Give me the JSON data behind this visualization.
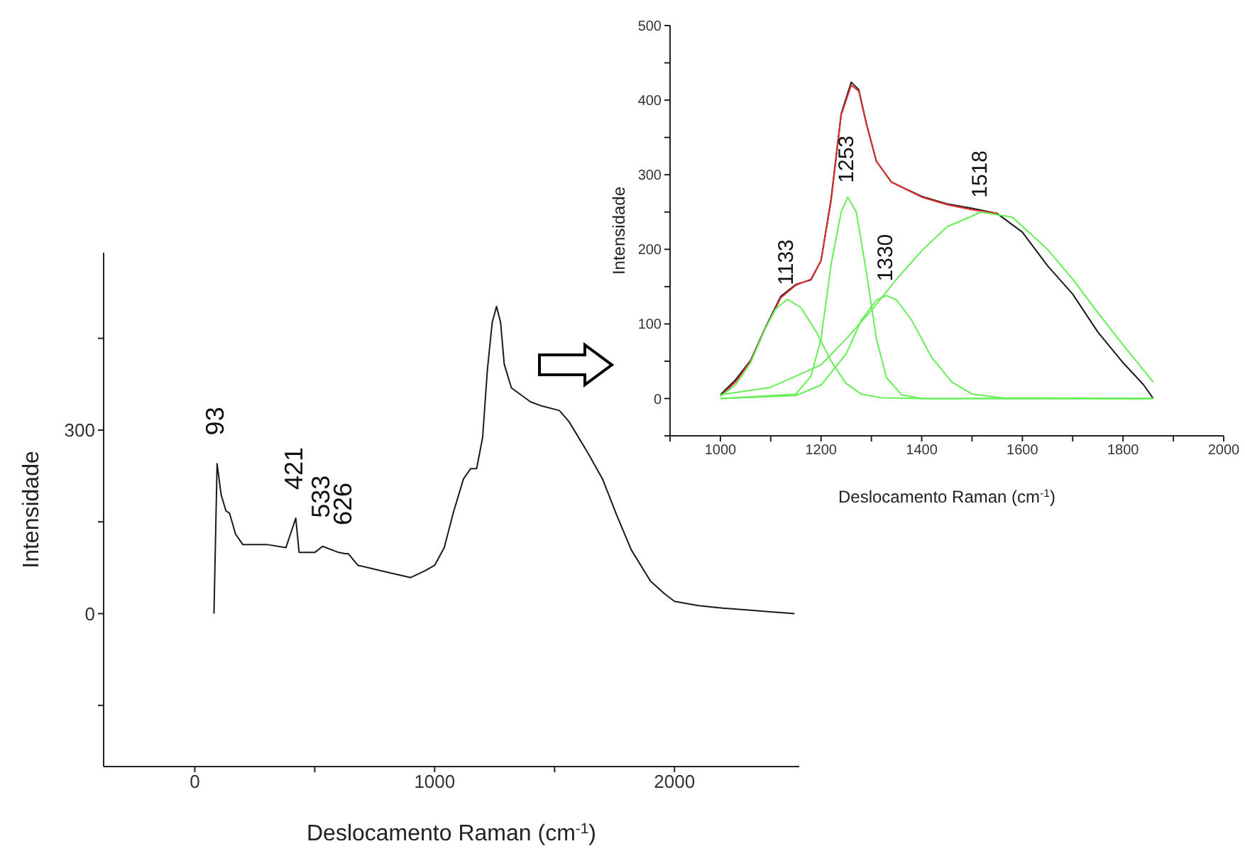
{
  "chart_data": [
    {
      "type": "line",
      "xlabel": "Deslocamento Raman (cm$^{-1}$)",
      "ylabel": "Intensidade",
      "xlim": [
        -380,
        2520
      ],
      "ylim": [
        -250,
        590
      ],
      "xticks": [
        0,
        {
          "value": 500,
          "label": null
        },
        1000,
        {
          "value": 1500,
          "label": null
        },
        2000
      ],
      "yticks": [
        {
          "value": -150,
          "label": null
        },
        0,
        {
          "value": 150,
          "label": null
        },
        300,
        {
          "value": 450,
          "label": null
        }
      ],
      "series": [
        {
          "color": "#1a1a1a",
          "x": [
            80,
            93,
            110,
            130,
            145,
            170,
            200,
            300,
            380,
            410,
            421,
            435,
            500,
            533,
            600,
            626,
            640,
            680,
            800,
            900,
            960,
            1000,
            1040,
            1080,
            1120,
            1150,
            1175,
            1200,
            1220,
            1240,
            1258,
            1275,
            1290,
            1320,
            1400,
            1450,
            1520,
            1560,
            1640,
            1700,
            1760,
            1820,
            1900,
            1960,
            2000,
            2100,
            2200,
            2300,
            2400,
            2500
          ],
          "values": [
            0,
            245,
            194,
            168,
            164,
            130,
            113,
            113,
            108,
            143,
            156,
            100,
            100,
            110,
            100,
            98,
            98,
            79,
            68,
            59,
            70,
            79,
            108,
            168,
            220,
            237,
            237,
            288,
            399,
            476,
            502,
            476,
            408,
            369,
            346,
            339,
            332,
            314,
            262,
            220,
            160,
            104,
            53,
            32,
            20,
            13,
            9,
            6,
            3,
            0
          ]
        }
      ],
      "annotations": [
        {
          "text": "93",
          "x": 93,
          "y": 245
        },
        {
          "text": "421",
          "x": 421,
          "y": 156
        },
        {
          "text": "533",
          "x": 533,
          "y": 110
        },
        {
          "text": "626",
          "x": 626,
          "y": 98
        }
      ]
    },
    {
      "type": "line",
      "xlabel": "Deslocamento Raman (cm$^{-1}$)",
      "ylabel": "Intensidade",
      "xlim": [
        900,
        2000
      ],
      "ylim": [
        -50,
        500
      ],
      "xticks": [
        {
          "value": 900,
          "label": null
        },
        1000,
        {
          "value": 1100,
          "label": null
        },
        1200,
        {
          "value": 1300,
          "label": null
        },
        1400,
        {
          "value": 1500,
          "label": null
        },
        1600,
        {
          "value": 1700,
          "label": null
        },
        1800,
        {
          "value": 1900,
          "label": null
        },
        2000
      ],
      "yticks": [
        {
          "value": -50,
          "label": null
        },
        0,
        {
          "value": 50,
          "label": null
        },
        100,
        {
          "value": 150,
          "label": null
        },
        200,
        {
          "value": 250,
          "label": null
        },
        300,
        {
          "value": 350,
          "label": null
        },
        400,
        {
          "value": 450,
          "label": null
        },
        500
      ],
      "series": [
        {
          "color": "#1a1a1a",
          "x": [
            1000,
            1030,
            1060,
            1090,
            1120,
            1150,
            1180,
            1200,
            1220,
            1240,
            1260,
            1275,
            1290,
            1310,
            1340,
            1400,
            1450,
            1500,
            1550,
            1600,
            1650,
            1700,
            1750,
            1800,
            1840,
            1860
          ],
          "values": [
            5,
            25,
            51,
            96,
            137,
            153,
            159,
            185,
            268,
            382,
            424,
            414,
            369,
            318,
            290,
            271,
            261,
            255,
            248,
            223,
            178,
            140,
            89,
            48,
            19,
            0
          ]
        },
        {
          "color": "#e03030",
          "x": [
            1000,
            1030,
            1060,
            1090,
            1120,
            1150,
            1180,
            1200,
            1220,
            1240,
            1260,
            1275,
            1290,
            1310,
            1340,
            1400,
            1450,
            1500,
            1550
          ],
          "values": [
            3,
            22,
            50,
            95,
            135,
            152,
            160,
            185,
            265,
            380,
            420,
            412,
            368,
            318,
            290,
            270,
            260,
            253,
            248
          ]
        },
        {
          "color": "#66ee55",
          "x": [
            1000,
            1030,
            1060,
            1090,
            1110,
            1133,
            1160,
            1190,
            1220,
            1250,
            1280,
            1320,
            1400,
            1860
          ],
          "values": [
            3,
            18,
            48,
            95,
            120,
            133,
            122,
            90,
            50,
            20,
            6,
            1,
            0,
            0
          ]
        },
        {
          "color": "#66ee55",
          "x": [
            1000,
            1150,
            1180,
            1200,
            1220,
            1240,
            1253,
            1270,
            1290,
            1310,
            1330,
            1360,
            1400,
            1860
          ],
          "values": [
            0,
            6,
            30,
            80,
            180,
            250,
            270,
            250,
            170,
            80,
            28,
            5,
            0,
            0
          ]
        },
        {
          "color": "#66ee55",
          "x": [
            1000,
            1150,
            1200,
            1250,
            1280,
            1310,
            1330,
            1350,
            1380,
            1420,
            1460,
            1500,
            1560,
            1860
          ],
          "values": [
            0,
            4,
            18,
            60,
            105,
            132,
            138,
            132,
            105,
            55,
            22,
            6,
            1,
            0
          ]
        },
        {
          "color": "#66ee55",
          "x": [
            1000,
            1100,
            1200,
            1250,
            1300,
            1350,
            1400,
            1450,
            1518,
            1580,
            1650,
            1700,
            1750,
            1800,
            1860
          ],
          "values": [
            5,
            15,
            45,
            80,
            118,
            160,
            198,
            230,
            250,
            243,
            200,
            160,
            115,
            72,
            22
          ]
        }
      ],
      "annotations": [
        {
          "text": "1133",
          "x": 1133,
          "y": 133
        },
        {
          "text": "1253",
          "x": 1253,
          "y": 270
        },
        {
          "text": "1330",
          "x": 1330,
          "y": 138
        },
        {
          "text": "1518",
          "x": 1518,
          "y": 250
        }
      ]
    }
  ]
}
